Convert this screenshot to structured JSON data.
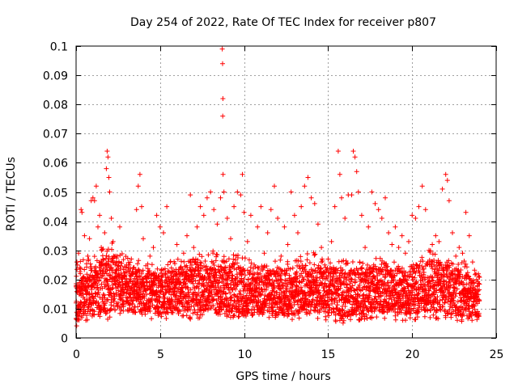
{
  "chart_data": {
    "type": "scatter",
    "title": "Day 254 of 2022, Rate Of TEC Index for receiver p807",
    "xlabel": "GPS time / hours",
    "ylabel": "ROTI / TECUs",
    "xlim": [
      0,
      25
    ],
    "ylim": [
      0,
      0.1
    ],
    "xticks": [
      0,
      5,
      10,
      15,
      20,
      25
    ],
    "yticks": [
      0,
      0.01,
      0.02,
      0.03,
      0.04,
      0.05,
      0.06,
      0.07,
      0.08,
      0.09,
      0.1
    ],
    "grid": true,
    "marker": "plus",
    "color": "#ff0000",
    "series": [
      {
        "points": [
          [
            0.0,
            0.012
          ],
          [
            0.05,
            0.026
          ],
          [
            0.1,
            0.018
          ],
          [
            0.15,
            0.029
          ],
          [
            0.2,
            0.009
          ],
          [
            0.25,
            0.022
          ],
          [
            0.3,
            0.044
          ],
          [
            0.35,
            0.043
          ],
          [
            0.4,
            0.015
          ],
          [
            0.5,
            0.035
          ],
          [
            0.6,
            0.012
          ],
          [
            0.7,
            0.028
          ],
          [
            0.8,
            0.034
          ],
          [
            0.9,
            0.047
          ],
          [
            1.0,
            0.048
          ],
          [
            1.1,
            0.047
          ],
          [
            1.2,
            0.052
          ],
          [
            1.3,
            0.038
          ],
          [
            1.4,
            0.042
          ],
          [
            1.5,
            0.031
          ],
          [
            1.6,
            0.027
          ],
          [
            1.7,
            0.036
          ],
          [
            1.8,
            0.058
          ],
          [
            1.85,
            0.064
          ],
          [
            1.9,
            0.062
          ],
          [
            1.95,
            0.055
          ],
          [
            2.0,
            0.05
          ],
          [
            2.1,
            0.041
          ],
          [
            2.2,
            0.033
          ],
          [
            2.4,
            0.022
          ],
          [
            2.6,
            0.038
          ],
          [
            2.8,
            0.018
          ],
          [
            3.0,
            0.025
          ],
          [
            3.2,
            0.015
          ],
          [
            3.4,
            0.024
          ],
          [
            3.6,
            0.044
          ],
          [
            3.7,
            0.052
          ],
          [
            3.8,
            0.056
          ],
          [
            3.9,
            0.045
          ],
          [
            4.0,
            0.034
          ],
          [
            4.2,
            0.021
          ],
          [
            4.4,
            0.028
          ],
          [
            4.6,
            0.031
          ],
          [
            4.8,
            0.042
          ],
          [
            5.0,
            0.038
          ],
          [
            5.2,
            0.036
          ],
          [
            5.4,
            0.045
          ],
          [
            5.6,
            0.026
          ],
          [
            5.8,
            0.021
          ],
          [
            6.0,
            0.032
          ],
          [
            6.2,
            0.024
          ],
          [
            6.4,
            0.029
          ],
          [
            6.6,
            0.035
          ],
          [
            6.8,
            0.049
          ],
          [
            7.0,
            0.031
          ],
          [
            7.2,
            0.038
          ],
          [
            7.4,
            0.045
          ],
          [
            7.6,
            0.042
          ],
          [
            7.8,
            0.048
          ],
          [
            8.0,
            0.05
          ],
          [
            8.2,
            0.044
          ],
          [
            8.4,
            0.039
          ],
          [
            8.6,
            0.048
          ],
          [
            8.7,
            0.099
          ],
          [
            8.72,
            0.094
          ],
          [
            8.74,
            0.082
          ],
          [
            8.73,
            0.076
          ],
          [
            8.75,
            0.056
          ],
          [
            8.8,
            0.05
          ],
          [
            9.0,
            0.041
          ],
          [
            9.2,
            0.034
          ],
          [
            9.4,
            0.045
          ],
          [
            9.6,
            0.05
          ],
          [
            9.8,
            0.049
          ],
          [
            9.9,
            0.056
          ],
          [
            10.0,
            0.043
          ],
          [
            10.2,
            0.033
          ],
          [
            10.4,
            0.042
          ],
          [
            10.6,
            0.025
          ],
          [
            10.8,
            0.038
          ],
          [
            11.0,
            0.045
          ],
          [
            11.2,
            0.029
          ],
          [
            11.4,
            0.036
          ],
          [
            11.6,
            0.044
          ],
          [
            11.8,
            0.052
          ],
          [
            12.0,
            0.041
          ],
          [
            12.2,
            0.028
          ],
          [
            12.4,
            0.038
          ],
          [
            12.6,
            0.032
          ],
          [
            12.8,
            0.05
          ],
          [
            13.0,
            0.042
          ],
          [
            13.2,
            0.036
          ],
          [
            13.4,
            0.045
          ],
          [
            13.6,
            0.052
          ],
          [
            13.8,
            0.055
          ],
          [
            14.0,
            0.048
          ],
          [
            14.2,
            0.046
          ],
          [
            14.4,
            0.039
          ],
          [
            14.6,
            0.031
          ],
          [
            14.8,
            0.025
          ],
          [
            15.0,
            0.027
          ],
          [
            15.2,
            0.033
          ],
          [
            15.4,
            0.045
          ],
          [
            15.6,
            0.064
          ],
          [
            15.7,
            0.056
          ],
          [
            15.8,
            0.048
          ],
          [
            16.0,
            0.041
          ],
          [
            16.2,
            0.049
          ],
          [
            16.4,
            0.049
          ],
          [
            16.5,
            0.064
          ],
          [
            16.6,
            0.062
          ],
          [
            16.7,
            0.057
          ],
          [
            16.8,
            0.05
          ],
          [
            17.0,
            0.042
          ],
          [
            17.2,
            0.031
          ],
          [
            17.4,
            0.038
          ],
          [
            17.6,
            0.05
          ],
          [
            17.8,
            0.046
          ],
          [
            18.0,
            0.044
          ],
          [
            18.2,
            0.041
          ],
          [
            18.4,
            0.048
          ],
          [
            18.6,
            0.036
          ],
          [
            18.8,
            0.032
          ],
          [
            19.0,
            0.038
          ],
          [
            19.2,
            0.031
          ],
          [
            19.4,
            0.035
          ],
          [
            19.6,
            0.029
          ],
          [
            19.8,
            0.033
          ],
          [
            20.0,
            0.042
          ],
          [
            20.2,
            0.041
          ],
          [
            20.4,
            0.045
          ],
          [
            20.6,
            0.052
          ],
          [
            20.8,
            0.044
          ],
          [
            21.0,
            0.03
          ],
          [
            21.2,
            0.032
          ],
          [
            21.4,
            0.035
          ],
          [
            21.6,
            0.033
          ],
          [
            21.8,
            0.051
          ],
          [
            22.0,
            0.056
          ],
          [
            22.1,
            0.054
          ],
          [
            22.2,
            0.047
          ],
          [
            22.4,
            0.036
          ],
          [
            22.6,
            0.028
          ],
          [
            22.8,
            0.031
          ],
          [
            23.0,
            0.029
          ],
          [
            23.2,
            0.043
          ],
          [
            23.4,
            0.035
          ],
          [
            23.6,
            0.026
          ],
          [
            23.8,
            0.022
          ],
          [
            24.0,
            0.013
          ]
        ],
        "band": {
          "description_values": "dense mass of points between these bounds across the whole day",
          "x_start": 0.0,
          "x_end": 24.0,
          "y_low": [
            0.004,
            0.007,
            0.006,
            0.008,
            0.007,
            0.006,
            0.007,
            0.006,
            0.008,
            0.007,
            0.006,
            0.007,
            0.006,
            0.006,
            0.007,
            0.006,
            0.005,
            0.006,
            0.007,
            0.006,
            0.006,
            0.007,
            0.006,
            0.005,
            0.006
          ],
          "y_mid": [
            0.013,
            0.016,
            0.02,
            0.017,
            0.016,
            0.015,
            0.016,
            0.018,
            0.017,
            0.017,
            0.016,
            0.015,
            0.016,
            0.016,
            0.017,
            0.016,
            0.015,
            0.016,
            0.017,
            0.016,
            0.016,
            0.018,
            0.017,
            0.015,
            0.013
          ],
          "y_high": [
            0.026,
            0.03,
            0.035,
            0.028,
            0.026,
            0.025,
            0.027,
            0.028,
            0.03,
            0.03,
            0.028,
            0.025,
            0.027,
            0.027,
            0.03,
            0.026,
            0.027,
            0.026,
            0.028,
            0.027,
            0.026,
            0.03,
            0.029,
            0.027,
            0.022
          ]
        }
      }
    ]
  }
}
